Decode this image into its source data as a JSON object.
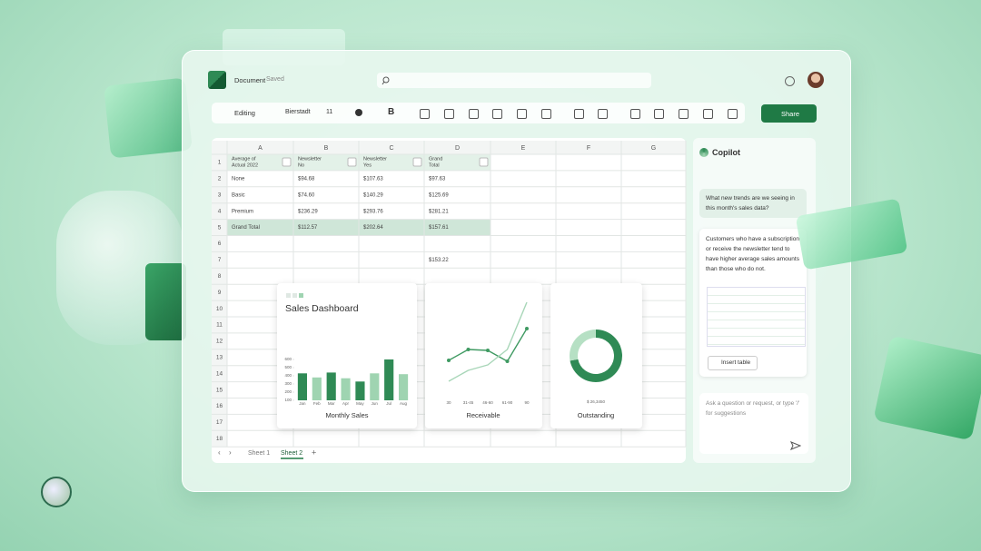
{
  "app": {
    "document_name": "Document",
    "save_status": "Saved"
  },
  "toolbar": {
    "mode": "Editing",
    "font": "Bierstadt",
    "font_size": "11",
    "bold": "B",
    "share": "Share"
  },
  "sheet": {
    "columns": [
      "A",
      "B",
      "C",
      "D",
      "E",
      "F",
      "G"
    ],
    "row_numbers": [
      1,
      2,
      3,
      4,
      5,
      6,
      7,
      8,
      9,
      10,
      11,
      12,
      13,
      14,
      15,
      16,
      17,
      18
    ],
    "table": [
      [
        "Average of Actual 2022",
        "Newsletter No",
        "Newsletter Yes",
        "Grand Total"
      ],
      [
        "None",
        "$94.68",
        "$107.63",
        "$97.63"
      ],
      [
        "Basic",
        "$74.60",
        "$140.29",
        "$125.69"
      ],
      [
        "Premium",
        "$236.29",
        "$293.76",
        "$281.21"
      ],
      [
        "Grand Total",
        "$112.57",
        "$202.64",
        "$157.61"
      ]
    ],
    "extra_cell": "$153.22",
    "tabs": [
      "Sheet 1",
      "Sheet 2"
    ],
    "add_tab": "+"
  },
  "dashboard": {
    "title": "Sales Dashboard",
    "monthly_sales": {
      "type": "bar",
      "title": "Monthly Sales",
      "categories": [
        "Jan",
        "Feb",
        "Mar",
        "Apr",
        "May",
        "Jun",
        "Jul",
        "Aug"
      ],
      "values": [
        430,
        380,
        440,
        370,
        330,
        430,
        600,
        420
      ],
      "ylim": [
        100,
        600
      ],
      "yticks": [
        100,
        200,
        300,
        400,
        500,
        600
      ],
      "colors": [
        "#2f8a55",
        "#9fd4b1"
      ]
    },
    "receivable": {
      "type": "line",
      "title": "Receivable",
      "categories": [
        "30",
        "31-45",
        "46-60",
        "61-90",
        "90"
      ],
      "series": [
        {
          "color": "#3f9a62",
          "values": [
            33,
            45,
            44,
            32,
            68
          ]
        },
        {
          "color": "#a8d6b8",
          "values": [
            10,
            22,
            28,
            45,
            97
          ]
        }
      ],
      "ylim": [
        0,
        100
      ]
    },
    "outstanding": {
      "type": "pie",
      "title": "Outstanding",
      "total_label": "$ 26,3450",
      "values": [
        72,
        28
      ],
      "colors": [
        "#2f8a55",
        "#b6e0c4"
      ]
    }
  },
  "copilot": {
    "title": "Copilot",
    "question": "What new trends are we seeing in this month's sales data?",
    "answer": "Customers who have a subscription or receive the newsletter tend to have higher average sales amounts than those who do not.",
    "insert_table": "Insert table",
    "input_placeholder": "Ask a question or request, or type '/' for suggestions"
  }
}
